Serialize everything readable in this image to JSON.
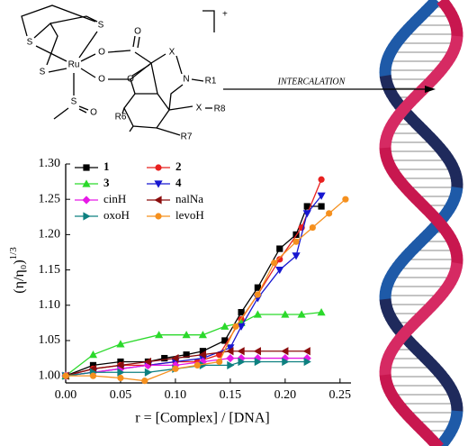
{
  "scheme": {
    "atoms": [
      "S",
      "S",
      "S",
      "Ru",
      "S",
      "O",
      "O",
      "O",
      "O",
      "O",
      "X",
      "N",
      "R1",
      "X",
      "R8",
      "R6",
      "R7"
    ],
    "charge": "+",
    "arrow_label": "INTERCALATION"
  },
  "chart_data": {
    "type": "line",
    "x_label": "r = [Complex] / [DNA]",
    "y_label": "(η/η₀)",
    "y_label_exponent": "1/3",
    "xlim": [
      0,
      0.26
    ],
    "ylim": [
      0.99,
      1.3
    ],
    "xticks": [
      {
        "value": 0,
        "label": "0.00"
      },
      0.05,
      {
        "value": 0.1,
        "label": "0.10"
      },
      0.15,
      {
        "value": 0.2,
        "label": "0.20"
      },
      0.25
    ],
    "yticks": [
      {
        "value": 1,
        "label": "1.00"
      },
      1.05,
      {
        "value": 1.1,
        "label": "1.10"
      },
      1.15,
      {
        "value": 1.2,
        "label": "1.20"
      },
      1.25,
      {
        "value": 1.3,
        "label": "1.30"
      }
    ],
    "legend": "upper left",
    "series": [
      {
        "name": "1",
        "color": "#000000",
        "marker": "square",
        "x": [
          0,
          0.025,
          0.05,
          0.075,
          0.09,
          0.11,
          0.125,
          0.145,
          0.16,
          0.175,
          0.195,
          0.21,
          0.22,
          0.233
        ],
        "values": [
          1.0,
          1.015,
          1.02,
          1.02,
          1.025,
          1.03,
          1.035,
          1.05,
          1.09,
          1.125,
          1.18,
          1.2,
          1.24,
          1.24
        ]
      },
      {
        "name": "2",
        "color": "#e8201f",
        "marker": "circle",
        "x": [
          0,
          0.025,
          0.05,
          0.075,
          0.1,
          0.12,
          0.14,
          0.16,
          0.175,
          0.195,
          0.215,
          0.233
        ],
        "values": [
          1.0,
          1.01,
          1.015,
          1.015,
          1.02,
          1.02,
          1.03,
          1.08,
          1.115,
          1.165,
          1.21,
          1.278
        ]
      },
      {
        "name": "3",
        "color": "#2bd92b",
        "marker": "triangle-up",
        "x": [
          0,
          0.025,
          0.05,
          0.085,
          0.11,
          0.125,
          0.145,
          0.16,
          0.175,
          0.2,
          0.215,
          0.233
        ],
        "values": [
          1.0,
          1.03,
          1.045,
          1.058,
          1.058,
          1.058,
          1.07,
          1.075,
          1.087,
          1.087,
          1.087,
          1.09
        ]
      },
      {
        "name": "4",
        "color": "#1717d0",
        "marker": "triangle-down",
        "x": [
          0,
          0.025,
          0.05,
          0.075,
          0.1,
          0.125,
          0.15,
          0.16,
          0.175,
          0.195,
          0.21,
          0.22,
          0.233
        ],
        "values": [
          1.0,
          1.005,
          1.01,
          1.015,
          1.02,
          1.025,
          1.04,
          1.07,
          1.11,
          1.15,
          1.17,
          1.23,
          1.255
        ]
      },
      {
        "name": "cinH",
        "color": "#e619e6",
        "marker": "diamond",
        "x": [
          0,
          0.025,
          0.05,
          0.075,
          0.1,
          0.125,
          0.15,
          0.16,
          0.175,
          0.2,
          0.22
        ],
        "values": [
          1.0,
          1.005,
          1.01,
          1.015,
          1.015,
          1.02,
          1.025,
          1.025,
          1.025,
          1.025,
          1.025
        ]
      },
      {
        "name": "nalNa",
        "color": "#8b0d0d",
        "marker": "triangle-left",
        "x": [
          0,
          0.025,
          0.05,
          0.075,
          0.1,
          0.125,
          0.15,
          0.16,
          0.175,
          0.2,
          0.22
        ],
        "values": [
          1.0,
          1.01,
          1.015,
          1.02,
          1.025,
          1.03,
          1.035,
          1.035,
          1.035,
          1.035,
          1.035
        ]
      },
      {
        "name": "oxoH",
        "color": "#0d8080",
        "marker": "triangle-right",
        "x": [
          0,
          0.025,
          0.05,
          0.075,
          0.1,
          0.125,
          0.15,
          0.16,
          0.175,
          0.2,
          0.22
        ],
        "values": [
          1.0,
          1.005,
          1.005,
          1.005,
          1.01,
          1.015,
          1.015,
          1.02,
          1.02,
          1.02,
          1.02
        ]
      },
      {
        "name": "levoH",
        "color": "#f5901e",
        "marker": "circle",
        "x": [
          0,
          0.025,
          0.05,
          0.072,
          0.1,
          0.12,
          0.14,
          0.155,
          0.175,
          0.19,
          0.21,
          0.225,
          0.24,
          0.255
        ],
        "values": [
          1.0,
          1.0,
          0.997,
          0.993,
          1.01,
          1.015,
          1.02,
          1.07,
          1.115,
          1.16,
          1.19,
          1.21,
          1.23,
          1.25
        ]
      }
    ]
  }
}
